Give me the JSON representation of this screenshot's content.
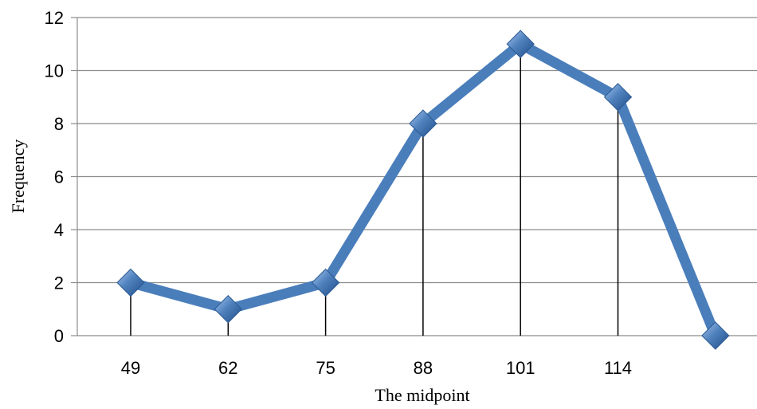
{
  "chart_data": {
    "type": "line",
    "title": "",
    "xlabel": "The midpoint",
    "ylabel": "Frequency",
    "categories": [
      "49",
      "62",
      "75",
      "88",
      "101",
      "114",
      ""
    ],
    "series": [
      {
        "values": [
          2,
          1,
          2,
          8,
          11,
          9,
          0
        ]
      }
    ],
    "ylim": [
      0,
      12
    ],
    "yticks": [
      "0",
      "2",
      "4",
      "6",
      "8",
      "10",
      "12"
    ],
    "grid": true,
    "drop_lines": true,
    "line_color": "#4a7ebb",
    "marker": "diamond"
  }
}
